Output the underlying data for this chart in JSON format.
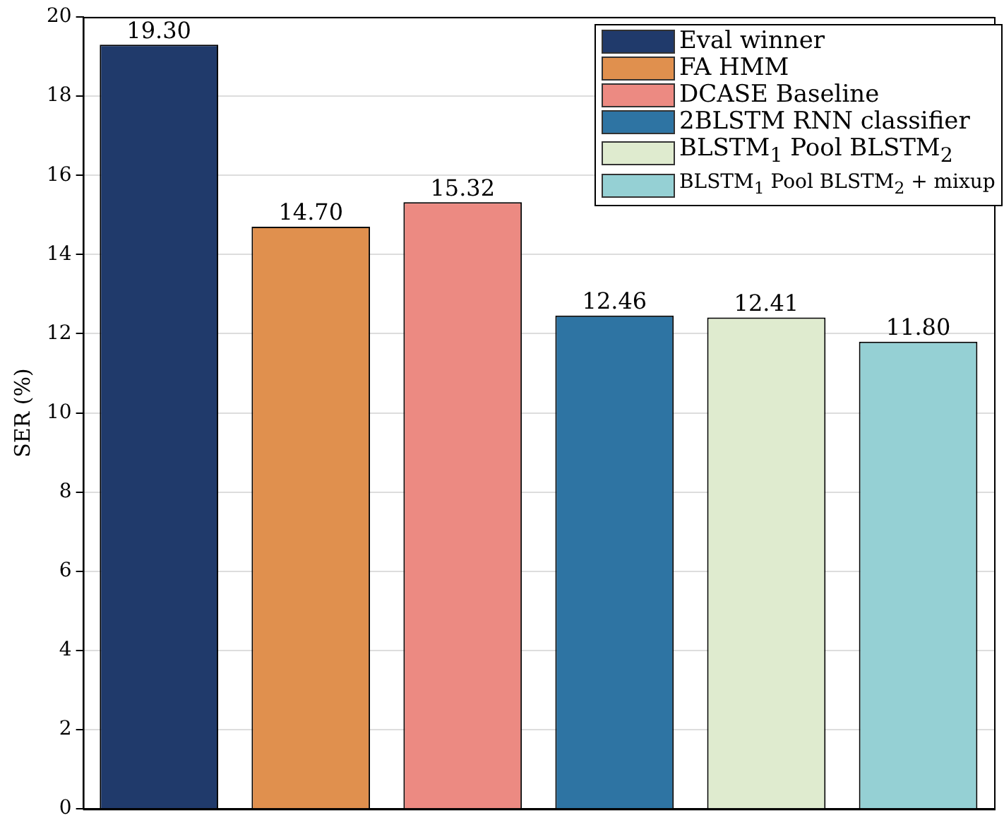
{
  "chart_data": {
    "type": "bar",
    "ylabel": "SER (%)",
    "categories": [
      null,
      null,
      null,
      null,
      null,
      null
    ],
    "series": [
      {
        "name": "Eval winner",
        "color": "#203a6b",
        "values": [
          19.3,
          null,
          null,
          null,
          null,
          null
        ],
        "value_labels": [
          "19.30",
          null,
          null,
          null,
          null,
          null
        ]
      },
      {
        "name": "FA HMM",
        "color": "#e0904e",
        "values": [
          null,
          14.7,
          null,
          null,
          null,
          null
        ],
        "value_labels": [
          null,
          "14.70",
          null,
          null,
          null,
          null
        ]
      },
      {
        "name": "DCASE Baseline",
        "color": "#ec8a82",
        "values": [
          null,
          null,
          15.32,
          null,
          null,
          null
        ],
        "value_labels": [
          null,
          null,
          "15.32",
          null,
          null,
          null
        ]
      },
      {
        "name": "2BLSTM RNN classifier",
        "color": "#2e74a3",
        "values": [
          null,
          null,
          null,
          12.46,
          null,
          null
        ],
        "value_labels": [
          null,
          null,
          null,
          "12.46",
          null,
          null
        ]
      },
      {
        "name": "BLSTM$_{1}$ Pool BLSTM$_{2}$",
        "color": "#dfebcf",
        "values": [
          null,
          null,
          null,
          null,
          12.41,
          null
        ],
        "value_labels": [
          null,
          null,
          null,
          null,
          "12.41",
          null
        ]
      },
      {
        "name": "BLSTM$_{1}$ Pool BLSTM$_{2}$ + mixup",
        "color": "#95d0d4",
        "values": [
          null,
          null,
          null,
          null,
          null,
          11.8
        ],
        "value_labels": [
          null,
          null,
          null,
          null,
          null,
          "11.80"
        ]
      }
    ],
    "ylim": [
      0,
      20
    ],
    "yticks": [
      0,
      2,
      4,
      6,
      8,
      10,
      12,
      14,
      16,
      18,
      20
    ],
    "grid": "y",
    "legend": "top right"
  }
}
